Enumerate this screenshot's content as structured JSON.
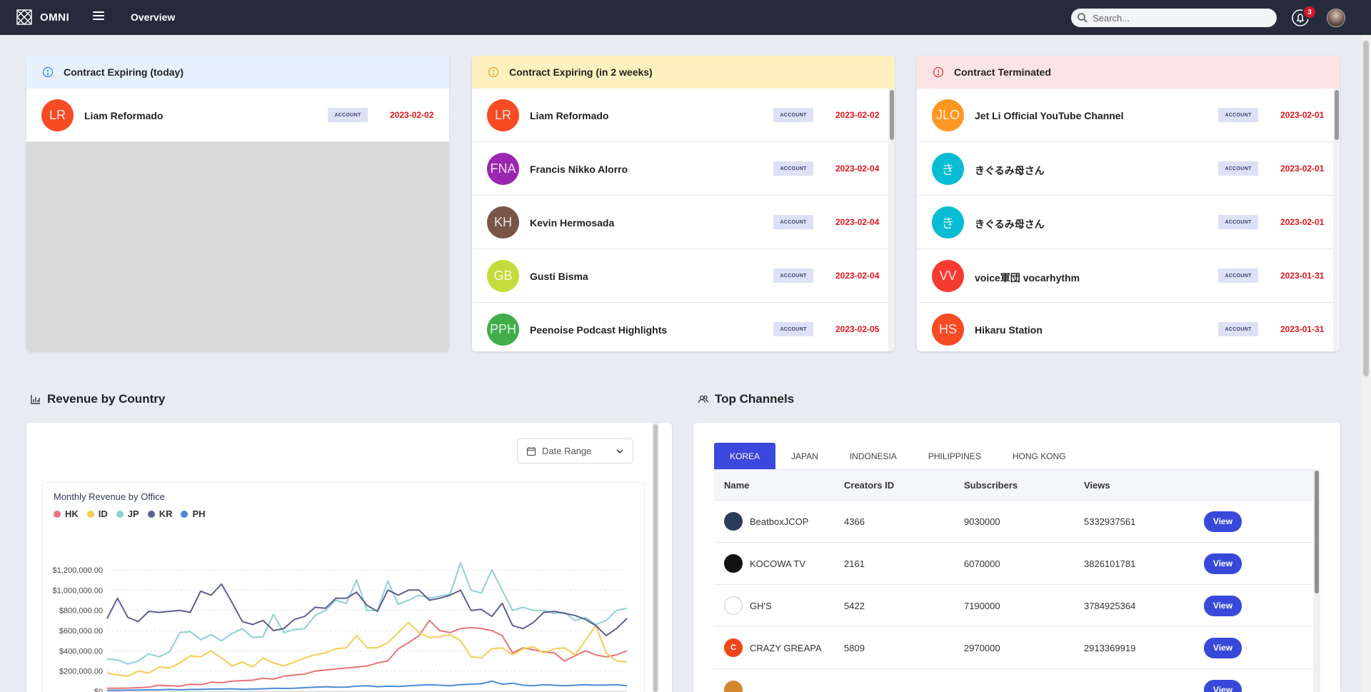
{
  "header": {
    "logo_text": "OMNI",
    "page_title": "Overview",
    "search_placeholder": "Search...",
    "notification_count": "3"
  },
  "contracts": [
    {
      "title": "Contract Expiring (today)",
      "header_color": "#e6f1fd",
      "icon_color": "#3a86d6",
      "items": [
        {
          "initials": "LR",
          "name": "Liam Reformado",
          "tag": "ACCOUNT",
          "date": "2023-02-02",
          "color": "#f64b25"
        }
      ]
    },
    {
      "title": "Contract Expiring (in 2 weeks)",
      "header_color": "#fdf2bf",
      "icon_color": "#e6a821",
      "items": [
        {
          "initials": "LR",
          "name": "Liam Reformado",
          "tag": "ACCOUNT",
          "date": "2023-02-02",
          "color": "#f64b25"
        },
        {
          "initials": "FNA",
          "name": "Francis Nikko Alorro",
          "tag": "ACCOUNT",
          "date": "2023-02-04",
          "color": "#9b27b0"
        },
        {
          "initials": "KH",
          "name": "Kevin Hermosada",
          "tag": "ACCOUNT",
          "date": "2023-02-04",
          "color": "#795548"
        },
        {
          "initials": "GB",
          "name": "Gusti Bisma",
          "tag": "ACCOUNT",
          "date": "2023-02-04",
          "color": "#c5db3b"
        },
        {
          "initials": "PPH",
          "name": "Peenoise Podcast Highlights",
          "tag": "ACCOUNT",
          "date": "2023-02-05",
          "color": "#41ad49"
        }
      ]
    },
    {
      "title": "Contract Terminated",
      "header_color": "#fde4e4",
      "icon_color": "#d94040",
      "items": [
        {
          "initials": "JLO",
          "name": "Jet Li Official YouTube Channel",
          "tag": "ACCOUNT",
          "date": "2023-02-01",
          "color": "#ff9722"
        },
        {
          "initials": "き",
          "name": "きぐるみ母さん",
          "tag": "ACCOUNT",
          "date": "2023-02-01",
          "color": "#08bcd4"
        },
        {
          "initials": "き",
          "name": "きぐるみ母さん",
          "tag": "ACCOUNT",
          "date": "2023-02-01",
          "color": "#08bcd4"
        },
        {
          "initials": "VV",
          "name": "voice軍団 vocarhythm",
          "tag": "ACCOUNT",
          "date": "2023-01-31",
          "color": "#f53b30"
        },
        {
          "initials": "HS",
          "name": "Hikaru Station",
          "tag": "ACCOUNT",
          "date": "2023-01-31",
          "color": "#f64b25"
        }
      ]
    }
  ],
  "revenue": {
    "section_title": "Revenue by Country",
    "date_range_label": "Date Range"
  },
  "chart_data": {
    "type": "line",
    "title": "Monthly Revenue by Office",
    "ylim": [
      0,
      1200000
    ],
    "yticks": [
      "$0",
      "$200,000.00",
      "$400,000.00",
      "$600,000.00",
      "$800,000.00",
      "$1,000,000.00",
      "$1,200,000.00"
    ],
    "grid": true,
    "legend_position": "top-left",
    "series": [
      {
        "name": "HK",
        "color": "#e8737b",
        "values": [
          30000,
          30000,
          32000,
          35000,
          40000,
          60000,
          55000,
          50000,
          70000,
          65000,
          90000,
          85000,
          100000,
          105000,
          110000,
          130000,
          120000,
          150000,
          160000,
          170000,
          200000,
          210000,
          220000,
          230000,
          240000,
          250000,
          280000,
          300000,
          420000,
          480000,
          550000,
          700000,
          600000,
          580000,
          620000,
          630000,
          620000,
          600000,
          550000,
          380000,
          430000,
          410000,
          390000,
          380000,
          300000,
          350000,
          400000,
          360000,
          340000,
          360000,
          400000
        ]
      },
      {
        "name": "ID",
        "color": "#f5cd54",
        "values": [
          180000,
          160000,
          150000,
          200000,
          180000,
          240000,
          230000,
          280000,
          350000,
          340000,
          400000,
          330000,
          250000,
          290000,
          240000,
          330000,
          280000,
          250000,
          290000,
          330000,
          360000,
          380000,
          420000,
          430000,
          550000,
          430000,
          430000,
          480000,
          580000,
          680000,
          580000,
          530000,
          540000,
          560000,
          500000,
          340000,
          330000,
          420000,
          430000,
          360000,
          420000,
          440000,
          380000,
          420000,
          430000,
          360000,
          500000,
          650000,
          380000,
          300000,
          290000
        ]
      },
      {
        "name": "JP",
        "color": "#8fd0d5",
        "values": [
          320000,
          310000,
          270000,
          300000,
          370000,
          340000,
          390000,
          580000,
          590000,
          510000,
          560000,
          500000,
          570000,
          620000,
          530000,
          540000,
          760000,
          580000,
          610000,
          620000,
          750000,
          800000,
          900000,
          870000,
          1100000,
          800000,
          800000,
          1090000,
          860000,
          900000,
          950000,
          920000,
          940000,
          960000,
          1270000,
          1000000,
          970000,
          1200000,
          1000000,
          800000,
          830000,
          800000,
          800000,
          770000,
          780000,
          700000,
          730000,
          660000,
          700000,
          800000,
          820000
        ]
      },
      {
        "name": "KR",
        "color": "#5d5f95",
        "values": [
          720000,
          920000,
          730000,
          690000,
          790000,
          780000,
          790000,
          800000,
          780000,
          990000,
          950000,
          1060000,
          880000,
          690000,
          660000,
          700000,
          600000,
          620000,
          710000,
          740000,
          830000,
          820000,
          920000,
          920000,
          980000,
          850000,
          790000,
          1000000,
          950000,
          1000000,
          1000000,
          900000,
          920000,
          950000,
          1000000,
          800000,
          810000,
          740000,
          870000,
          650000,
          620000,
          680000,
          780000,
          790000,
          770000,
          750000,
          710000,
          650000,
          550000,
          620000,
          720000
        ]
      },
      {
        "name": "PH",
        "color": "#4b8ad9",
        "values": [
          10000,
          10000,
          12000,
          12000,
          15000,
          15000,
          18000,
          15000,
          18000,
          20000,
          22000,
          22000,
          25000,
          20000,
          22000,
          25000,
          30000,
          28000,
          30000,
          35000,
          40000,
          45000,
          40000,
          42000,
          50000,
          55000,
          45000,
          50000,
          48000,
          55000,
          60000,
          65000,
          60000,
          55000,
          65000,
          70000,
          75000,
          100000,
          70000,
          80000,
          60000,
          55000,
          65000,
          60000,
          55000,
          60000,
          65000,
          60000,
          62000,
          65000,
          55000
        ]
      }
    ]
  },
  "channels": {
    "section_title": "Top Channels",
    "tabs": [
      "KOREA",
      "JAPAN",
      "INDONESIA",
      "PHILIPPINES",
      "HONG KONG"
    ],
    "columns": [
      "Name",
      "Creators ID",
      "Subscribers",
      "Views"
    ],
    "view_label": "View",
    "rows": [
      {
        "name": "BeatboxJCOP",
        "creator_id": "4366",
        "subscribers": "9030000",
        "views": "5332937561",
        "avatar_color": "#2b3c5a",
        "avatar_text": ""
      },
      {
        "name": "KOCOWA TV",
        "creator_id": "2161",
        "subscribers": "6070000",
        "views": "3826101781",
        "avatar_color": "#111111",
        "avatar_text": ""
      },
      {
        "name": "GH'S",
        "creator_id": "5422",
        "subscribers": "7190000",
        "views": "3784925364",
        "avatar_color": "#ffffff",
        "avatar_text": ""
      },
      {
        "name": "CRAZY GREAPA",
        "creator_id": "5809",
        "subscribers": "2970000",
        "views": "2913369919",
        "avatar_color": "#f0461c",
        "avatar_text": "C"
      },
      {
        "name": "",
        "creator_id": "",
        "subscribers": "",
        "views": "",
        "avatar_color": "#d4862a",
        "avatar_text": ""
      }
    ]
  }
}
